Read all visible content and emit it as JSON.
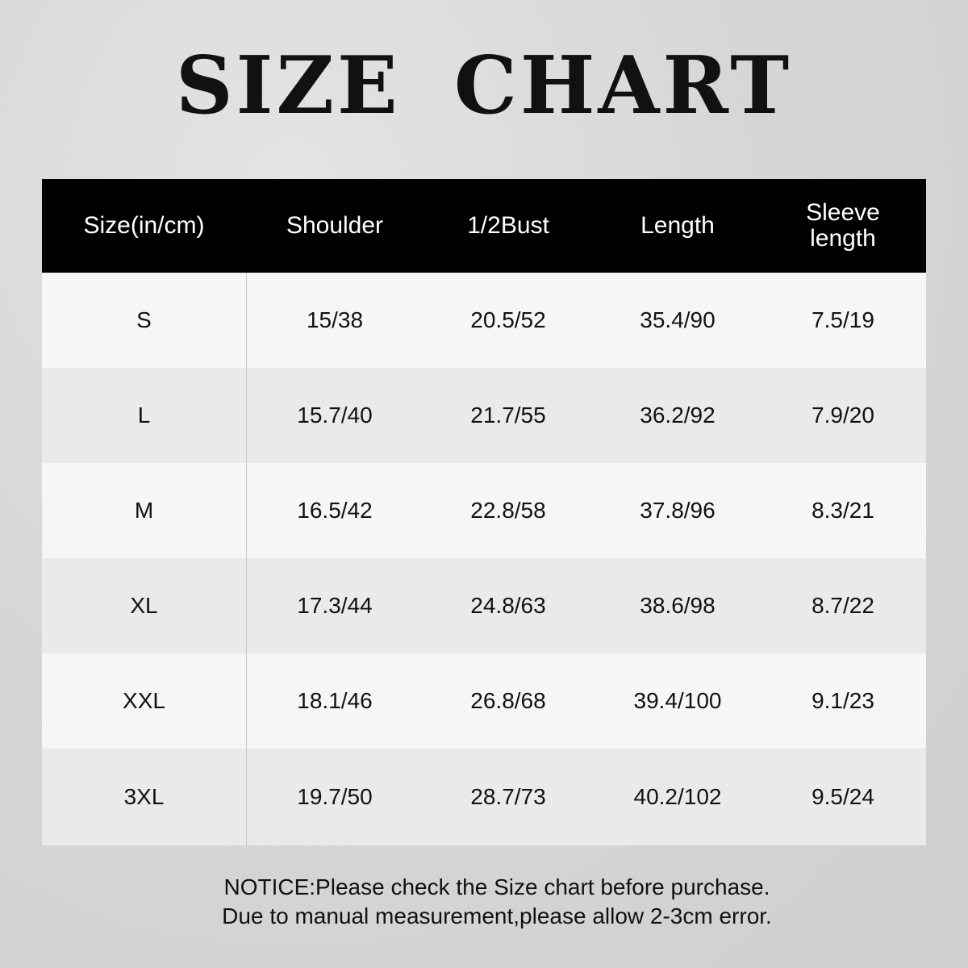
{
  "title": "SIZE CHART",
  "table": {
    "headers": [
      "Size(in/cm)",
      "Shoulder",
      "1/2Bust",
      "Length",
      "Sleeve length"
    ],
    "rows": [
      [
        "S",
        "15/38",
        "20.5/52",
        "35.4/90",
        "7.5/19"
      ],
      [
        "L",
        "15.7/40",
        "21.7/55",
        "36.2/92",
        "7.9/20"
      ],
      [
        "M",
        "16.5/42",
        "22.8/58",
        "37.8/96",
        "8.3/21"
      ],
      [
        "XL",
        "17.3/44",
        "24.8/63",
        "38.6/98",
        "8.7/22"
      ],
      [
        "XXL",
        "18.1/46",
        "26.8/68",
        "39.4/100",
        "9.1/23"
      ],
      [
        "3XL",
        "19.7/50",
        "28.7/73",
        "40.2/102",
        "9.5/24"
      ]
    ]
  },
  "notice": {
    "line1": "NOTICE:Please check the Size chart before purchase.",
    "line2": "Due to manual measurement,please allow 2-3cm error."
  }
}
